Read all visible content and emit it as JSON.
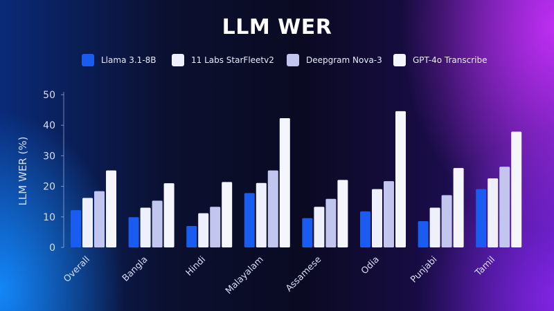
{
  "chart_data": {
    "type": "bar",
    "title": "LLM WER",
    "ylabel": "LLM WER (%)",
    "xlabel": "",
    "ylim": [
      0,
      50
    ],
    "yticks": [
      0,
      10,
      20,
      30,
      40,
      50
    ],
    "legend_position": "top",
    "categories": [
      "Overall",
      "Bangla",
      "Hindi",
      "Malayalam",
      "Assamese",
      "Odia",
      "Punjabi",
      "Tamil"
    ],
    "series": [
      {
        "name": "Llama 3.1-8B",
        "color": "#1a5cf0",
        "values": [
          12.2,
          9.9,
          7.0,
          17.8,
          9.6,
          11.8,
          8.6,
          19.1
        ]
      },
      {
        "name": "11 Labs StarFleetv2",
        "color": "#eef0fb",
        "values": [
          16.2,
          13.0,
          11.2,
          21.1,
          13.3,
          19.1,
          13.0,
          22.6
        ]
      },
      {
        "name": "Deepgram Nova-3",
        "color": "#c2c6ef",
        "values": [
          18.4,
          15.3,
          13.3,
          25.2,
          15.9,
          21.7,
          17.1,
          26.4
        ]
      },
      {
        "name": "GPT-4o Transcribe",
        "color": "#f5f6fc",
        "values": [
          25.2,
          21.0,
          21.4,
          42.3,
          22.1,
          44.6,
          26.0,
          37.9
        ]
      }
    ]
  }
}
